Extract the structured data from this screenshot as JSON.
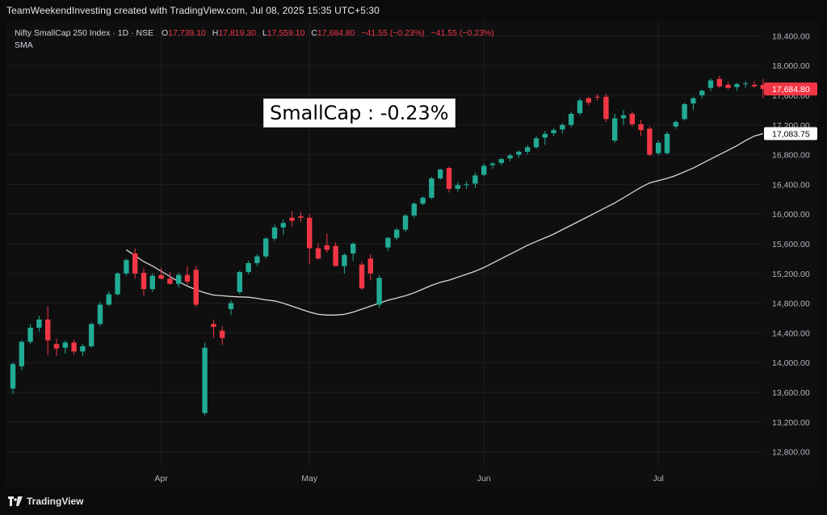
{
  "header": {
    "credit": "TeamWeekendInvesting created with TradingView.com, Jul 08, 2025 15:35 UTC+5:30"
  },
  "legend": {
    "symbol": "Nifty SmallCap 250 Index · 1D · NSE",
    "o_label": "O",
    "o_value": "17,739.10",
    "h_label": "H",
    "h_value": "17,819.30",
    "l_label": "L",
    "l_value": "17,559.10",
    "c_label": "C",
    "c_value": "17,684.80",
    "change": "−41.55 (−0.23%)",
    "change2": "−41.55 (−0.23%)",
    "indicator": "SMA"
  },
  "annotation": {
    "text": "SmallCap : -0.23%"
  },
  "brand": {
    "name": "TradingView",
    "logo_icon": "tradingview-logo-icon"
  },
  "colors": {
    "up": "#22ab94",
    "down": "#f23645",
    "sma": "#d9d9d9",
    "grid": "#1e1f22",
    "background": "#0f0f10"
  },
  "chart_data": {
    "type": "candlestick",
    "title": "Nifty SmallCap 250 Index · 1D · NSE",
    "ylim": [
      12600,
      18600
    ],
    "y_ticks": [
      12800,
      13200,
      13600,
      14000,
      14400,
      14800,
      15200,
      15600,
      16000,
      16400,
      16800,
      17200,
      17600,
      18000,
      18400
    ],
    "y_tick_labels": [
      "12,800.00",
      "13,200.00",
      "13,600.00",
      "14,000.00",
      "14,400.00",
      "14,800.00",
      "15,200.00",
      "15,600.00",
      "16,000.00",
      "16,400.00",
      "16,800.00",
      "17,200.00",
      "17,600.00",
      "18,000.00",
      "18,400.00"
    ],
    "x_labels": [
      {
        "label": "Apr",
        "index": 17
      },
      {
        "label": "May",
        "index": 34
      },
      {
        "label": "Jun",
        "index": 54
      },
      {
        "label": "Jul",
        "index": 74
      }
    ],
    "price_label": "17,684.80",
    "sma_label": "17,083.75",
    "candles": [
      [
        13650,
        14000,
        13580,
        13980
      ],
      [
        13950,
        14300,
        13900,
        14280
      ],
      [
        14280,
        14520,
        14250,
        14470
      ],
      [
        14470,
        14630,
        14420,
        14580
      ],
      [
        14580,
        14760,
        14100,
        14300
      ],
      [
        14250,
        14320,
        14090,
        14190
      ],
      [
        14200,
        14300,
        14120,
        14270
      ],
      [
        14270,
        14310,
        14100,
        14150
      ],
      [
        14150,
        14250,
        14090,
        14220
      ],
      [
        14220,
        14540,
        14200,
        14520
      ],
      [
        14520,
        14820,
        14490,
        14780
      ],
      [
        14780,
        14960,
        14760,
        14920
      ],
      [
        14920,
        15220,
        14900,
        15200
      ],
      [
        15200,
        15400,
        15170,
        15380
      ],
      [
        15470,
        15540,
        15130,
        15200
      ],
      [
        15210,
        15270,
        14900,
        14990
      ],
      [
        14990,
        15200,
        14950,
        15170
      ],
      [
        15180,
        15280,
        15120,
        15130
      ],
      [
        15130,
        15220,
        15050,
        15060
      ],
      [
        15060,
        15210,
        15010,
        15180
      ],
      [
        15180,
        15300,
        15050,
        15090
      ],
      [
        15250,
        15300,
        14750,
        14780
      ],
      [
        13320,
        14270,
        13290,
        14200
      ],
      [
        14520,
        14580,
        14330,
        14480
      ],
      [
        14430,
        14490,
        14240,
        14330
      ],
      [
        14720,
        14840,
        14640,
        14800
      ],
      [
        14950,
        15240,
        14920,
        15220
      ],
      [
        15220,
        15370,
        15190,
        15340
      ],
      [
        15340,
        15460,
        15300,
        15430
      ],
      [
        15430,
        15690,
        15400,
        15670
      ],
      [
        15670,
        15860,
        15640,
        15820
      ],
      [
        15820,
        15930,
        15720,
        15880
      ],
      [
        15950,
        16040,
        15830,
        15910
      ],
      [
        15970,
        16030,
        15890,
        15950
      ],
      [
        15950,
        16000,
        15320,
        15540
      ],
      [
        15540,
        15610,
        15390,
        15400
      ],
      [
        15580,
        15740,
        15480,
        15520
      ],
      [
        15570,
        15620,
        15350,
        15300
      ],
      [
        15300,
        15470,
        15200,
        15450
      ],
      [
        15470,
        15620,
        15370,
        15600
      ],
      [
        15320,
        15360,
        14980,
        15000
      ],
      [
        15400,
        15460,
        15110,
        15200
      ],
      [
        14780,
        15180,
        14740,
        15140
      ],
      [
        15550,
        15690,
        15500,
        15680
      ],
      [
        15680,
        15810,
        15650,
        15790
      ],
      [
        15790,
        16000,
        15760,
        15980
      ],
      [
        15980,
        16160,
        15950,
        16140
      ],
      [
        16140,
        16240,
        16120,
        16220
      ],
      [
        16220,
        16500,
        16200,
        16480
      ],
      [
        16480,
        16610,
        16460,
        16600
      ],
      [
        16620,
        16640,
        16290,
        16340
      ],
      [
        16340,
        16430,
        16300,
        16390
      ],
      [
        16390,
        16440,
        16340,
        16400
      ],
      [
        16410,
        16560,
        16350,
        16520
      ],
      [
        16530,
        16680,
        16510,
        16650
      ],
      [
        16660,
        16700,
        16610,
        16680
      ],
      [
        16690,
        16760,
        16660,
        16740
      ],
      [
        16750,
        16810,
        16710,
        16790
      ],
      [
        16800,
        16860,
        16760,
        16840
      ],
      [
        16840,
        16930,
        16800,
        16900
      ],
      [
        16900,
        17050,
        16880,
        17020
      ],
      [
        17030,
        17120,
        16930,
        17080
      ],
      [
        17090,
        17160,
        17050,
        17130
      ],
      [
        17140,
        17220,
        17090,
        17200
      ],
      [
        17200,
        17380,
        17170,
        17350
      ],
      [
        17360,
        17560,
        17330,
        17530
      ],
      [
        17560,
        17580,
        17460,
        17500
      ],
      [
        17580,
        17620,
        17530,
        17570
      ],
      [
        17580,
        17620,
        17240,
        17280
      ],
      [
        16990,
        17350,
        16960,
        17290
      ],
      [
        17290,
        17400,
        17200,
        17330
      ],
      [
        17350,
        17380,
        17180,
        17210
      ],
      [
        17210,
        17270,
        17050,
        17130
      ],
      [
        17150,
        17180,
        16780,
        16800
      ],
      [
        16820,
        16990,
        16790,
        16960
      ],
      [
        16820,
        17110,
        16800,
        17080
      ],
      [
        17180,
        17260,
        17150,
        17240
      ],
      [
        17280,
        17500,
        17260,
        17480
      ],
      [
        17490,
        17580,
        17400,
        17560
      ],
      [
        17600,
        17680,
        17560,
        17660
      ],
      [
        17700,
        17830,
        17660,
        17800
      ],
      [
        17820,
        17860,
        17700,
        17720
      ],
      [
        17740,
        17780,
        17680,
        17700
      ],
      [
        17710,
        17770,
        17660,
        17750
      ],
      [
        17750,
        17790,
        17700,
        17760
      ],
      [
        17740,
        17790,
        17700,
        17720
      ],
      [
        17739.1,
        17819.3,
        17559.1,
        17684.8
      ]
    ],
    "sma": [
      15520,
      15440,
      15360,
      15300,
      15230,
      15160,
      15090,
      15030,
      14980,
      14940,
      14910,
      14900,
      14890,
      14885,
      14880,
      14865,
      14845,
      14830,
      14800,
      14760,
      14720,
      14680,
      14650,
      14640,
      14640,
      14650,
      14680,
      14720,
      14760,
      14800,
      14840,
      14870,
      14900,
      14940,
      14990,
      15040,
      15080,
      15110,
      15150,
      15190,
      15230,
      15280,
      15340,
      15400,
      15460,
      15520,
      15580,
      15630,
      15680,
      15730,
      15790,
      15850,
      15910,
      15970,
      16030,
      16090,
      16150,
      16220,
      16290,
      16360,
      16420,
      16450,
      16480,
      16520,
      16570,
      16620,
      16680,
      16740,
      16800,
      16860,
      16920,
      16990,
      17050,
      17083.75
    ]
  }
}
